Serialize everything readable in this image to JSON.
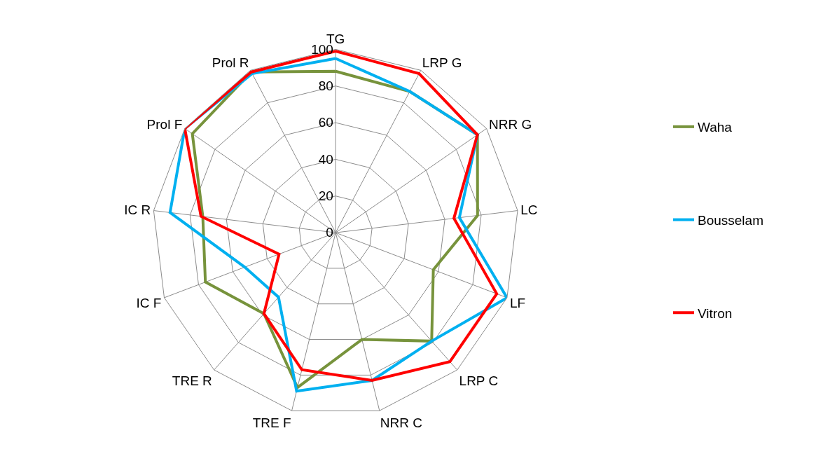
{
  "chart_data": {
    "type": "radar",
    "categories": [
      "TG",
      "LRP G",
      "NRR G",
      "LC",
      "LF",
      "LRP C",
      "NRR C",
      "TRE F",
      "TRE R",
      "IC F",
      "IC R",
      "Prol F",
      "Prol R"
    ],
    "series": [
      {
        "name": "Waha",
        "color": "#77933c",
        "values": [
          88,
          87,
          94,
          78,
          57,
          79,
          60,
          87,
          59,
          76,
          73,
          95,
          99
        ]
      },
      {
        "name": "Bousselam",
        "color": "#00b0f0",
        "values": [
          95,
          87,
          94,
          68,
          100,
          79,
          83,
          89,
          47,
          53,
          91,
          100,
          98
        ]
      },
      {
        "name": "Vitron",
        "color": "#ff0000",
        "values": [
          99,
          98,
          94,
          65,
          94,
          94,
          83,
          77,
          59,
          33,
          74,
          100,
          99
        ]
      }
    ],
    "ylim": [
      0,
      100
    ],
    "yticks": [
      0,
      20,
      40,
      60,
      80,
      100
    ],
    "grid": true,
    "legend": "right",
    "marker": "none",
    "line_style": "solid"
  }
}
